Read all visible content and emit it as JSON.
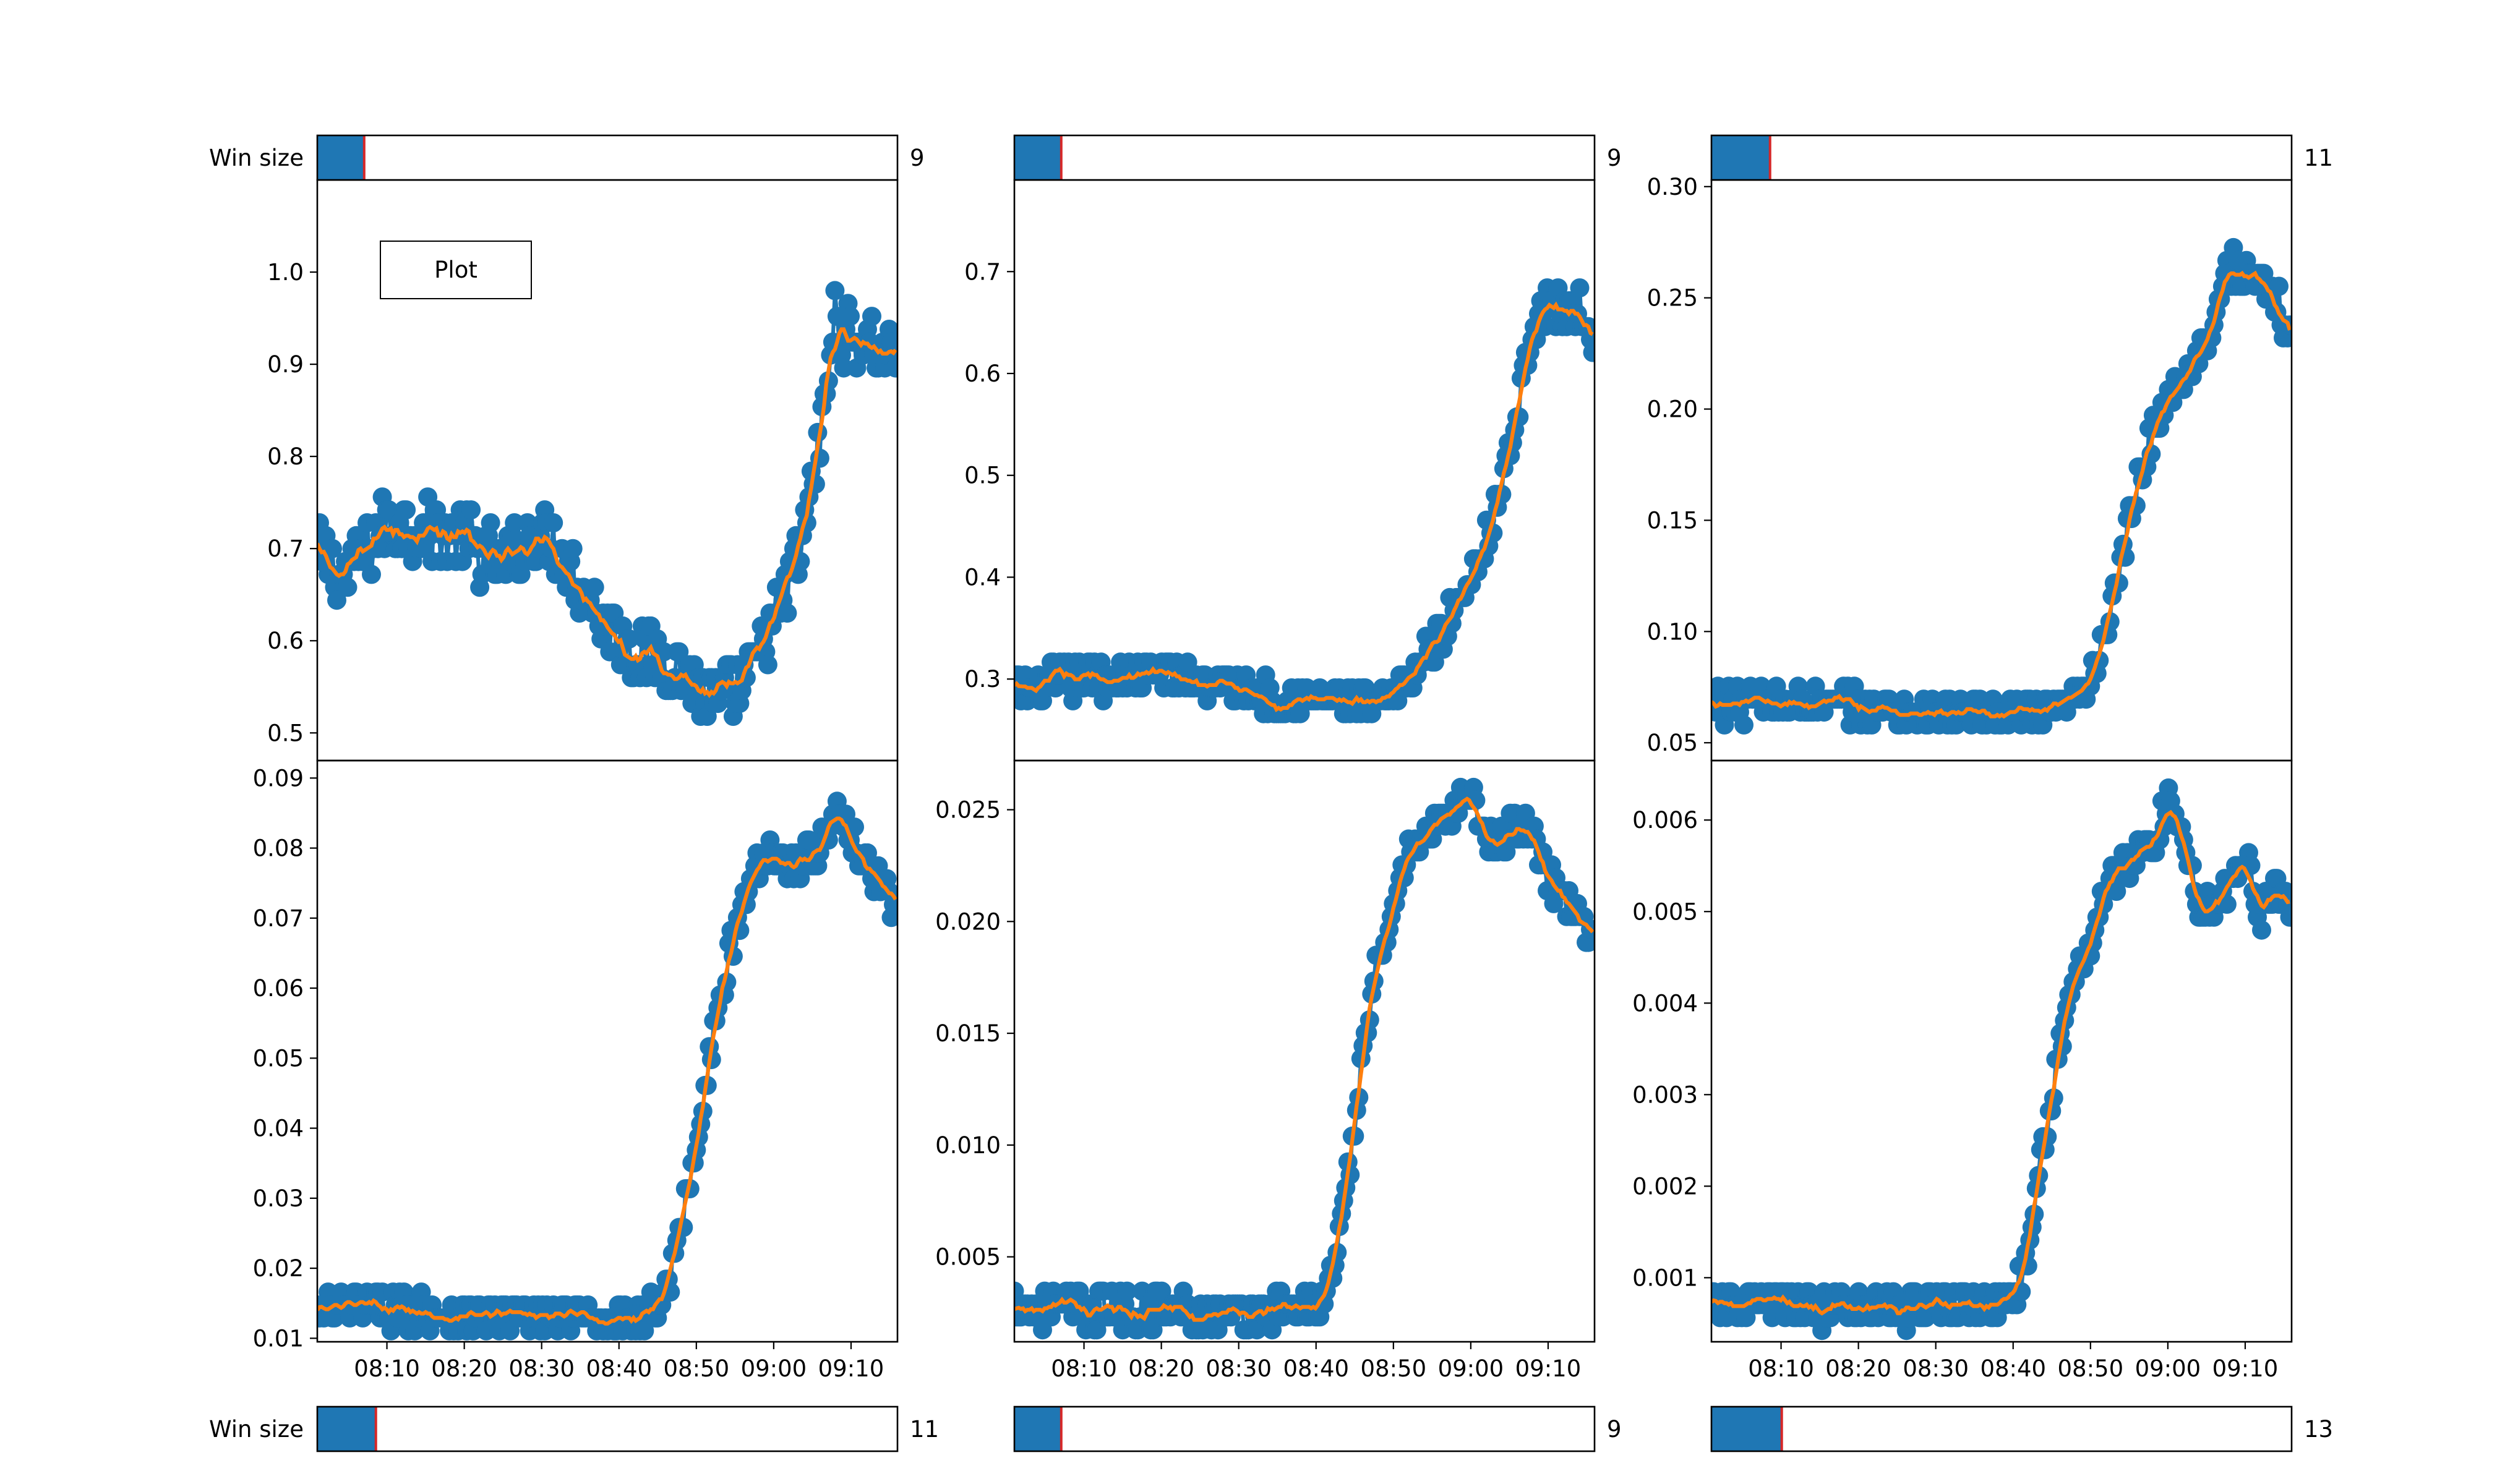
{
  "plot_button": {
    "label": "Plot"
  },
  "colors": {
    "points": "#1f77b4",
    "smooth": "#ff7f0e",
    "slider_fill": "#1f77b4",
    "slider_marker": "#d62728"
  },
  "sliders": [
    {
      "label": "Win size",
      "value": "9",
      "valmin": 1,
      "valmax": 100,
      "val": 9
    },
    {
      "label": "",
      "value": "9",
      "valmin": 1,
      "valmax": 100,
      "val": 9
    },
    {
      "label": "",
      "value": "11",
      "valmin": 1,
      "valmax": 100,
      "val": 11
    },
    {
      "label": "Win size",
      "value": "11",
      "valmin": 1,
      "valmax": 100,
      "val": 11
    },
    {
      "label": "",
      "value": "9",
      "valmin": 1,
      "valmax": 100,
      "val": 9
    },
    {
      "label": "",
      "value": "13",
      "valmin": 1,
      "valmax": 100,
      "val": 13
    }
  ],
  "chart_data": [
    {
      "type": "line",
      "x_range": [
        "08:01",
        "09:16"
      ],
      "xticks": [],
      "ylim": [
        0.47,
        1.1
      ],
      "yticks": [
        "0.5",
        "0.6",
        "0.7",
        "0.8",
        "0.9",
        "1.0"
      ],
      "series": [
        {
          "x": [
            "08:01",
            "08:05",
            "08:10",
            "08:15",
            "08:20",
            "08:25",
            "08:30",
            "08:34",
            "08:38",
            "08:42",
            "08:46",
            "08:50",
            "08:53",
            "08:56",
            "08:59",
            "09:02",
            "09:04",
            "09:06",
            "09:08",
            "09:10",
            "09:12",
            "09:14",
            "09:16"
          ],
          "y": [
            0.69,
            0.67,
            0.73,
            0.72,
            0.71,
            0.68,
            0.72,
            0.68,
            0.62,
            0.59,
            0.58,
            0.55,
            0.53,
            0.55,
            0.6,
            0.66,
            0.72,
            0.82,
            0.95,
            0.92,
            0.93,
            0.91,
            0.92
          ]
        }
      ]
    },
    {
      "type": "line",
      "x_range": [
        "08:01",
        "09:16"
      ],
      "xticks": [],
      "ylim": [
        0.22,
        0.79
      ],
      "yticks": [
        "0.3",
        "0.4",
        "0.5",
        "0.6",
        "0.7"
      ],
      "series": [
        {
          "x": [
            "08:01",
            "08:10",
            "08:20",
            "08:30",
            "08:35",
            "08:40",
            "08:45",
            "08:48",
            "08:50",
            "08:52",
            "08:55",
            "08:58",
            "09:00",
            "09:02",
            "09:04",
            "09:06",
            "09:08",
            "09:10",
            "09:12",
            "09:14",
            "09:16"
          ],
          "y": [
            0.29,
            0.3,
            0.305,
            0.29,
            0.28,
            0.28,
            0.275,
            0.27,
            0.28,
            0.3,
            0.33,
            0.37,
            0.4,
            0.44,
            0.49,
            0.56,
            0.65,
            0.67,
            0.66,
            0.67,
            0.63
          ]
        }
      ]
    },
    {
      "type": "line",
      "x_range": [
        "08:01",
        "09:16"
      ],
      "xticks": [],
      "ylim": [
        0.042,
        0.303
      ],
      "yticks": [
        "0.05",
        "0.10",
        "0.15",
        "0.20",
        "0.25",
        "0.30"
      ],
      "series": [
        {
          "x": [
            "08:01",
            "08:10",
            "08:20",
            "08:30",
            "08:40",
            "08:45",
            "08:48",
            "08:50",
            "08:52",
            "08:54",
            "08:56",
            "08:58",
            "09:00",
            "09:02",
            "09:04",
            "09:06",
            "09:08",
            "09:10",
            "09:12",
            "09:14",
            "09:16"
          ],
          "y": [
            0.067,
            0.068,
            0.066,
            0.063,
            0.062,
            0.062,
            0.07,
            0.08,
            0.1,
            0.13,
            0.165,
            0.19,
            0.205,
            0.215,
            0.225,
            0.24,
            0.265,
            0.26,
            0.255,
            0.25,
            0.23
          ]
        }
      ]
    },
    {
      "type": "line",
      "x_range": [
        "08:01",
        "09:16"
      ],
      "xticks": [
        "08:10",
        "08:20",
        "08:30",
        "08:40",
        "08:50",
        "09:00",
        "09:10"
      ],
      "ylim": [
        0.0095,
        0.0925
      ],
      "yticks": [
        "0.01",
        "0.02",
        "0.03",
        "0.04",
        "0.05",
        "0.06",
        "0.07",
        "0.08",
        "0.09"
      ],
      "series": [
        {
          "x": [
            "08:01",
            "08:10",
            "08:20",
            "08:30",
            "08:40",
            "08:45",
            "08:47",
            "08:49",
            "08:51",
            "08:53",
            "08:55",
            "08:57",
            "09:00",
            "09:03",
            "09:06",
            "09:08",
            "09:10",
            "09:12",
            "09:14",
            "09:16"
          ],
          "y": [
            0.014,
            0.0145,
            0.0135,
            0.013,
            0.013,
            0.014,
            0.02,
            0.032,
            0.045,
            0.058,
            0.068,
            0.076,
            0.08,
            0.077,
            0.08,
            0.085,
            0.082,
            0.078,
            0.075,
            0.07
          ]
        }
      ]
    },
    {
      "type": "line",
      "x_range": [
        "08:01",
        "09:16"
      ],
      "xticks": [
        "08:10",
        "08:20",
        "08:30",
        "08:40",
        "08:50",
        "09:00",
        "09:10"
      ],
      "ylim": [
        0.0012,
        0.0272
      ],
      "yticks": [
        "0.005",
        "0.010",
        "0.015",
        "0.020",
        "0.025"
      ],
      "series": [
        {
          "x": [
            "08:01",
            "08:10",
            "08:20",
            "08:30",
            "08:40",
            "08:42",
            "08:44",
            "08:46",
            "08:48",
            "08:50",
            "08:52",
            "08:54",
            "08:56",
            "08:58",
            "09:00",
            "09:02",
            "09:04",
            "09:06",
            "09:08",
            "09:10",
            "09:12",
            "09:14",
            "09:16"
          ],
          "y": [
            0.0028,
            0.0026,
            0.0027,
            0.0025,
            0.0028,
            0.004,
            0.008,
            0.014,
            0.018,
            0.021,
            0.023,
            0.0235,
            0.024,
            0.0255,
            0.0258,
            0.0235,
            0.0238,
            0.0242,
            0.024,
            0.022,
            0.021,
            0.02,
            0.0195
          ]
        }
      ]
    },
    {
      "type": "line",
      "x_range": [
        "08:01",
        "09:16"
      ],
      "xticks": [
        "08:10",
        "08:20",
        "08:30",
        "08:40",
        "08:50",
        "09:00",
        "09:10"
      ],
      "ylim": [
        0.0003,
        0.00665
      ],
      "yticks": [
        "0.001",
        "0.002",
        "0.003",
        "0.004",
        "0.005",
        "0.006"
      ],
      "series": [
        {
          "x": [
            "08:01",
            "08:10",
            "08:20",
            "08:30",
            "08:40",
            "08:42",
            "08:44",
            "08:46",
            "08:48",
            "08:50",
            "08:52",
            "08:54",
            "08:56",
            "08:58",
            "09:00",
            "09:02",
            "09:04",
            "09:06",
            "09:08",
            "09:10",
            "09:12",
            "09:14",
            "09:16"
          ],
          "y": [
            0.0007,
            0.0007,
            0.00065,
            0.00068,
            0.00075,
            0.0012,
            0.0025,
            0.0035,
            0.0042,
            0.0047,
            0.0052,
            0.0055,
            0.0056,
            0.0057,
            0.0062,
            0.0058,
            0.0051,
            0.005,
            0.0053,
            0.0056,
            0.005,
            0.0052,
            0.005
          ]
        }
      ]
    }
  ]
}
